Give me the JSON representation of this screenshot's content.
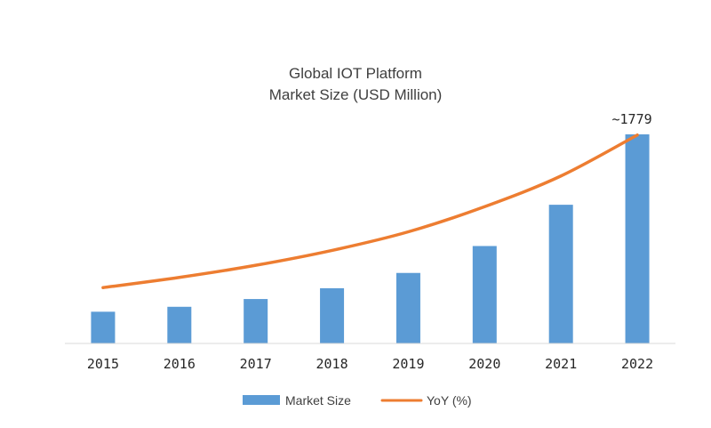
{
  "chart_data": {
    "type": "bar",
    "title_lines": [
      "Global IOT Platform",
      "Market Size (USD Million)"
    ],
    "categories": [
      "2015",
      "2016",
      "2017",
      "2018",
      "2019",
      "2020",
      "2021",
      "2022"
    ],
    "series": [
      {
        "name": "Market Size",
        "type": "bar",
        "color": "#5b9bd5",
        "values": [
          270,
          312,
          378,
          470,
          600,
          829,
          1180,
          1779
        ]
      },
      {
        "name": "YoY (%)",
        "type": "line",
        "color": "#ed7d31",
        "values": [
          6.0,
          7.1,
          8.4,
          10.0,
          12.0,
          14.7,
          18.0,
          22.4
        ]
      }
    ],
    "data_labels": [
      {
        "category": "2022",
        "text": "~1779"
      }
    ],
    "bar_ylim": [
      0,
      1900
    ],
    "line_ylim": [
      0,
      24
    ],
    "grid": false,
    "legend_position": "bottom"
  }
}
